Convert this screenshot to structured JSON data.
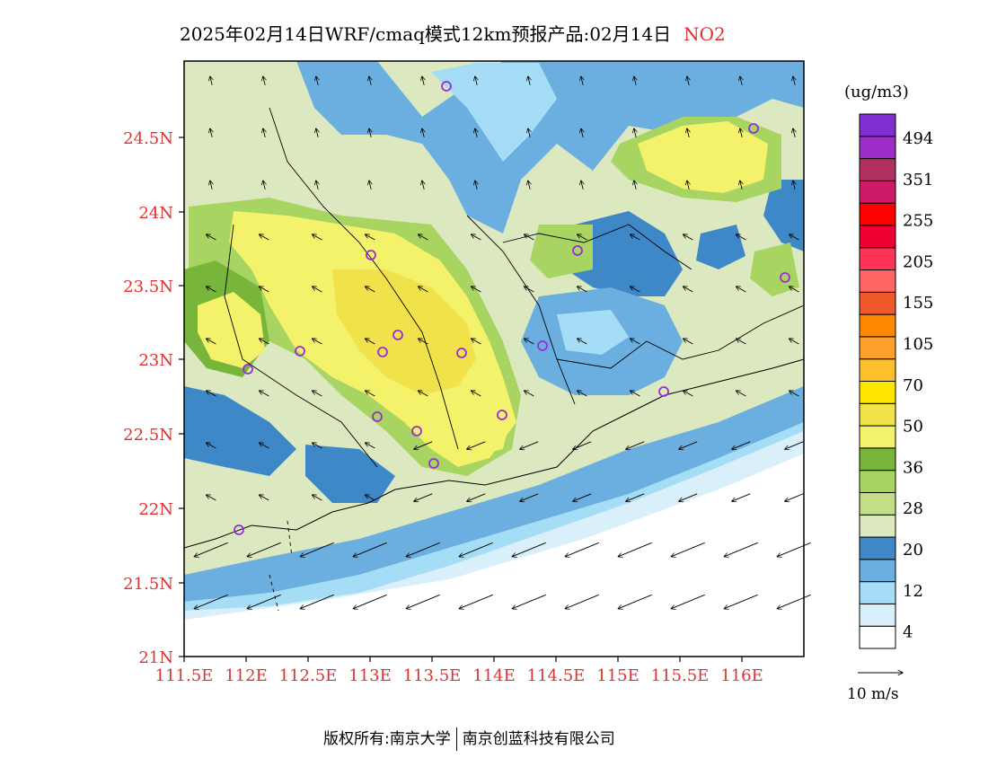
{
  "title": {
    "main": "2025年02月14日WRF/cmaq模式12km预报产品:02月14日",
    "pollutant": "NO2",
    "pollutant_color": "#e03030"
  },
  "footer": {
    "copyright": "版权所有:南京大学",
    "company": "南京创蓝科技有限公司"
  },
  "map": {
    "lat_labels": [
      "24.5N",
      "24N",
      "23.5N",
      "23N",
      "22.5N",
      "22N",
      "21.5N",
      "21N"
    ],
    "lon_labels": [
      "111.5E",
      "112E",
      "112.5E",
      "113E",
      "113.5E",
      "114E",
      "114.5E",
      "115E",
      "115.5E",
      "116E"
    ],
    "axis_label_color": "#e03030"
  },
  "legend": {
    "unit": "(ug/m3)",
    "labels": [
      "494",
      "351",
      "255",
      "205",
      "155",
      "105",
      "70",
      "50",
      "36",
      "28",
      "20",
      "12",
      "4"
    ],
    "colors": [
      "#ffffff",
      "#d9effa",
      "#a6ddf6",
      "#6aafe0",
      "#3f88c8",
      "#dce9c0",
      "#c3df86",
      "#a8d462",
      "#77b63b",
      "#f4f26a",
      "#f1e24c",
      "#ffe600",
      "#fdbf2c",
      "#fea02a",
      "#fe8800",
      "#ef5a2a",
      "#ff6666",
      "#ff3355",
      "#ee0033",
      "#ff0000",
      "#cc1a66",
      "#b03060",
      "#9c2dc8",
      "#8030d0"
    ]
  },
  "wind_ref": {
    "label": "10 m/s"
  },
  "city_markers_color": "#9a2cd8"
}
